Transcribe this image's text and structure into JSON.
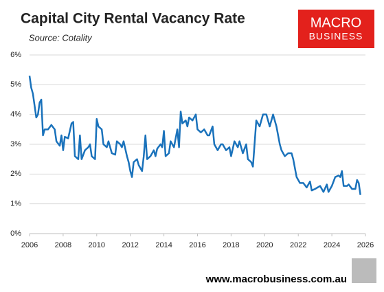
{
  "chart_data": {
    "type": "line",
    "title": "Capital City Rental Vacancy Rate",
    "subtitle": "Source: Cotality",
    "brand": [
      "MACRO",
      "BUSINESS"
    ],
    "footer": "www.macrobusiness.com.au",
    "xlim": [
      2006,
      2026
    ],
    "xticks": [
      2006,
      2008,
      2010,
      2012,
      2014,
      2016,
      2018,
      2020,
      2022,
      2024,
      2026
    ],
    "ylim": [
      0,
      6
    ],
    "yticks": [
      {
        "value": 0,
        "label": "0%"
      },
      {
        "value": 1,
        "label": "1%"
      },
      {
        "value": 2,
        "label": "2%"
      },
      {
        "value": 3,
        "label": "3%"
      },
      {
        "value": 4,
        "label": "4%"
      },
      {
        "value": 5,
        "label": "5%"
      },
      {
        "value": 6,
        "label": "6%"
      }
    ],
    "grid": true,
    "color": "#1a72bb",
    "x": [
      2006.0,
      2006.1,
      2006.2,
      2006.4,
      2006.5,
      2006.6,
      2006.7,
      2006.8,
      2006.9,
      2007.1,
      2007.3,
      2007.5,
      2007.6,
      2007.8,
      2007.9,
      2008.0,
      2008.1,
      2008.3,
      2008.5,
      2008.6,
      2008.7,
      2008.9,
      2009.0,
      2009.1,
      2009.3,
      2009.5,
      2009.6,
      2009.7,
      2009.9,
      2010.0,
      2010.1,
      2010.3,
      2010.4,
      2010.6,
      2010.7,
      2010.9,
      2011.1,
      2011.2,
      2011.4,
      2011.5,
      2011.6,
      2011.8,
      2011.9,
      2012.0,
      2012.1,
      2012.2,
      2012.4,
      2012.5,
      2012.7,
      2012.8,
      2012.9,
      2013.0,
      2013.2,
      2013.4,
      2013.5,
      2013.6,
      2013.8,
      2013.9,
      2014.0,
      2014.1,
      2014.3,
      2014.4,
      2014.5,
      2014.6,
      2014.8,
      2014.9,
      2015.0,
      2015.1,
      2015.3,
      2015.4,
      2015.5,
      2015.7,
      2015.9,
      2016.0,
      2016.2,
      2016.4,
      2016.6,
      2016.7,
      2016.9,
      2017.0,
      2017.2,
      2017.4,
      2017.5,
      2017.7,
      2017.9,
      2018.0,
      2018.2,
      2018.4,
      2018.5,
      2018.7,
      2018.9,
      2019.0,
      2019.2,
      2019.3,
      2019.5,
      2019.7,
      2019.9,
      2020.1,
      2020.3,
      2020.5,
      2020.7,
      2020.9,
      2021.0,
      2021.2,
      2021.4,
      2021.6,
      2021.7,
      2021.9,
      2022.1,
      2022.3,
      2022.5,
      2022.7,
      2022.8,
      2023.0,
      2023.3,
      2023.5,
      2023.7,
      2023.8,
      2024.0,
      2024.2,
      2024.4,
      2024.5,
      2024.6,
      2024.7,
      2024.9,
      2025.0,
      2025.2,
      2025.4,
      2025.5,
      2025.6,
      2025.7
    ],
    "values": [
      5.3,
      4.9,
      4.7,
      3.9,
      4.0,
      4.4,
      4.5,
      3.3,
      3.5,
      3.5,
      3.65,
      3.5,
      3.1,
      2.95,
      3.3,
      2.8,
      3.25,
      3.2,
      3.7,
      3.75,
      2.6,
      2.5,
      3.3,
      2.5,
      2.8,
      2.9,
      3.0,
      2.6,
      2.5,
      3.85,
      3.6,
      3.5,
      3.0,
      2.9,
      3.1,
      2.7,
      2.65,
      3.1,
      3.0,
      2.9,
      3.1,
      2.6,
      2.4,
      2.1,
      1.9,
      2.4,
      2.5,
      2.3,
      2.1,
      2.6,
      3.3,
      2.5,
      2.6,
      2.8,
      2.6,
      2.85,
      3.0,
      2.9,
      3.45,
      2.6,
      2.7,
      3.1,
      3.0,
      2.9,
      3.5,
      2.9,
      4.1,
      3.7,
      3.8,
      3.6,
      3.9,
      3.8,
      4.0,
      3.5,
      3.4,
      3.5,
      3.3,
      3.3,
      3.6,
      3.0,
      2.8,
      3.0,
      3.0,
      2.8,
      2.9,
      2.6,
      3.1,
      2.9,
      3.1,
      2.7,
      3.0,
      2.5,
      2.4,
      2.25,
      3.8,
      3.6,
      4.0,
      4.0,
      3.6,
      4.0,
      3.6,
      3.0,
      2.8,
      2.6,
      2.7,
      2.7,
      2.5,
      1.9,
      1.7,
      1.7,
      1.55,
      1.75,
      1.45,
      1.5,
      1.6,
      1.4,
      1.65,
      1.4,
      1.6,
      1.9,
      1.95,
      1.9,
      2.1,
      1.6,
      1.6,
      1.65,
      1.5,
      1.5,
      1.8,
      1.7,
      1.3
    ]
  }
}
